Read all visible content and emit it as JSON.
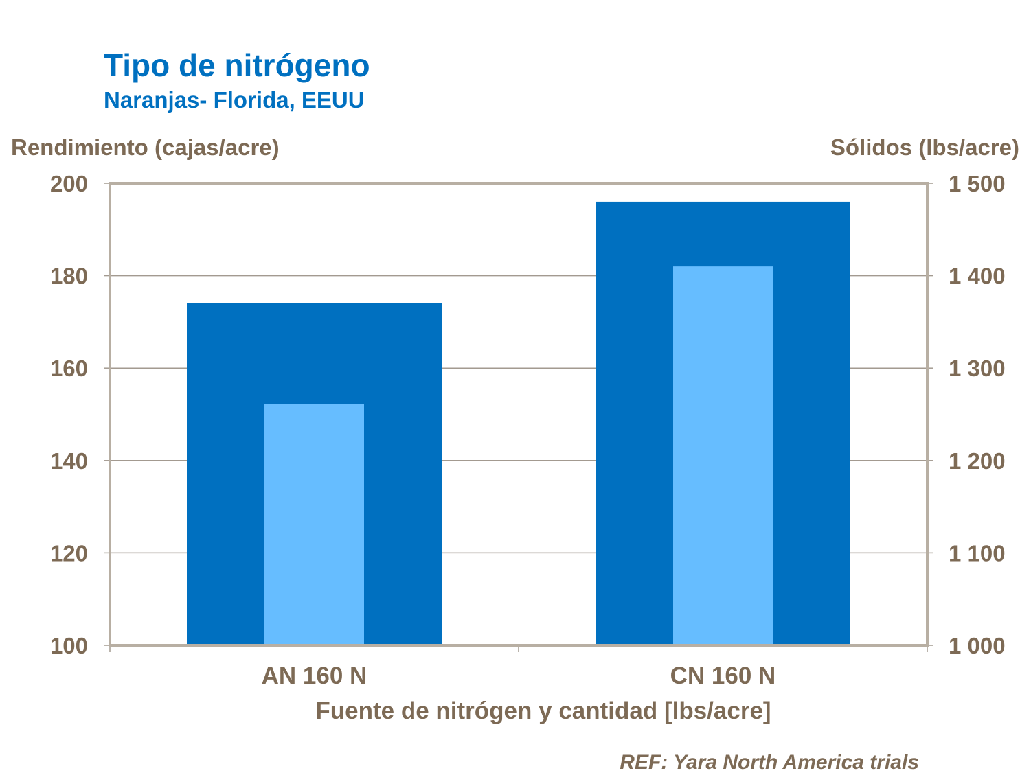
{
  "chart_data": {
    "type": "bar",
    "title": "Tipo de nitrógeno",
    "subtitle": "Naranjas- Florida, EEUU",
    "ylabel": "Rendimiento (cajas/acre)",
    "y2label": "Sólidos (lbs/acre)",
    "xlabel": "Fuente de nitrógen y cantidad [lbs/acre]",
    "categories": [
      "AN 160 N",
      "CN 160 N"
    ],
    "ylim": [
      100,
      200
    ],
    "y2lim": [
      1000,
      1500
    ],
    "yticks": [
      "100",
      "120",
      "140",
      "160",
      "180",
      "200"
    ],
    "y2ticks": [
      "1 000",
      "1 100",
      "1 200",
      "1 300",
      "1 400",
      "1 500"
    ],
    "grid": true,
    "series": [
      {
        "axis": "left",
        "color": "#0070C0",
        "values": [
          174,
          196
        ]
      },
      {
        "axis": "right",
        "color": "#66BDFF",
        "values": [
          1261,
          1410
        ]
      }
    ],
    "note": "REF: Yara North America trials"
  }
}
